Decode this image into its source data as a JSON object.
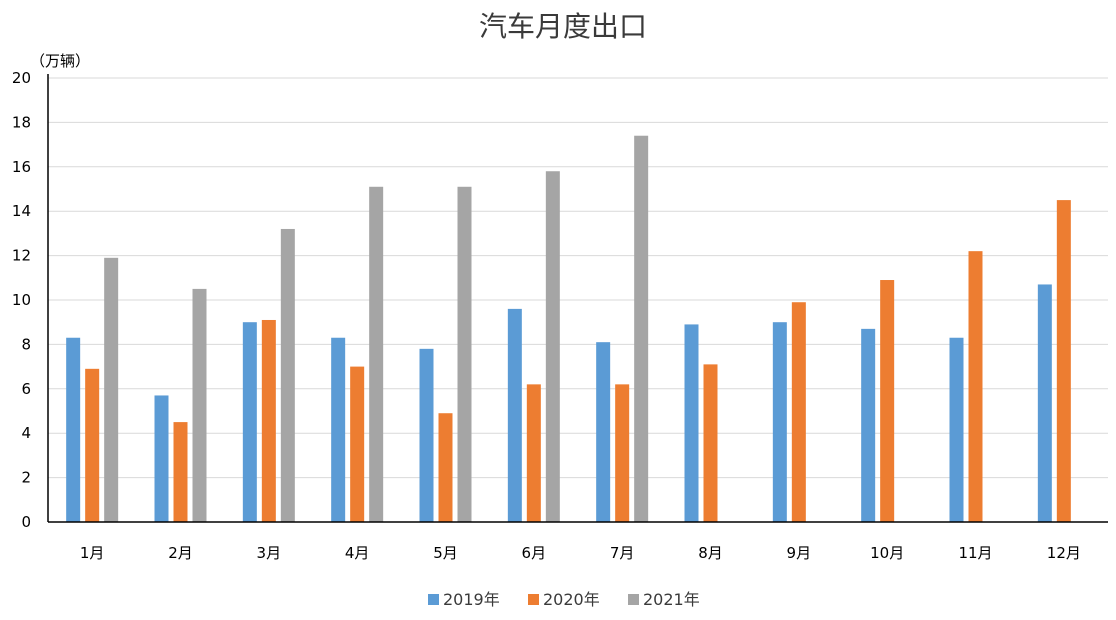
{
  "chart_data": {
    "type": "bar",
    "title": "汽车月度出口",
    "ylabel": "（万辆）",
    "xlabel": "",
    "ylim": [
      0,
      20
    ],
    "yticks": [
      "0",
      "2",
      "4",
      "6",
      "8",
      "10",
      "12",
      "14",
      "16",
      "18",
      "20"
    ],
    "categories": [
      "1月",
      "2月",
      "3月",
      "4月",
      "5月",
      "6月",
      "7月",
      "8月",
      "9月",
      "10月",
      "11月",
      "12月"
    ],
    "series": [
      {
        "name": "2019年",
        "color": "#5b9bd5",
        "values": [
          8.3,
          5.7,
          9.0,
          8.3,
          7.8,
          9.6,
          8.1,
          8.9,
          9.0,
          8.7,
          8.3,
          10.7
        ]
      },
      {
        "name": "2020年",
        "color": "#ed7d31",
        "values": [
          6.9,
          4.5,
          9.1,
          7.0,
          4.9,
          6.2,
          6.2,
          7.1,
          9.9,
          10.9,
          12.2,
          14.5
        ]
      },
      {
        "name": "2021年",
        "color": "#a5a5a5",
        "values": [
          11.9,
          10.5,
          13.2,
          15.1,
          15.1,
          15.8,
          17.4,
          null,
          null,
          null,
          null,
          null
        ]
      }
    ],
    "grid": true,
    "legend_position": "bottom"
  }
}
